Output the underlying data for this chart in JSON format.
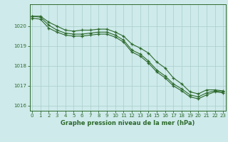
{
  "x": [
    0,
    1,
    2,
    3,
    4,
    5,
    6,
    7,
    8,
    9,
    10,
    11,
    12,
    13,
    14,
    15,
    16,
    17,
    18,
    19,
    20,
    21,
    22,
    23
  ],
  "line1": [
    1020.5,
    1020.5,
    1020.2,
    1020.0,
    1019.8,
    1019.75,
    1019.8,
    1019.8,
    1019.85,
    1019.85,
    1019.7,
    1019.5,
    1019.1,
    1018.9,
    1018.65,
    1018.2,
    1017.9,
    1017.4,
    1017.1,
    1016.7,
    1016.6,
    1016.8,
    1016.8,
    1016.75
  ],
  "line2": [
    1020.4,
    1020.35,
    1019.9,
    1019.7,
    1019.55,
    1019.5,
    1019.5,
    1019.55,
    1019.6,
    1019.6,
    1019.45,
    1019.2,
    1018.7,
    1018.5,
    1018.15,
    1017.7,
    1017.4,
    1017.0,
    1016.75,
    1016.45,
    1016.35,
    1016.55,
    1016.7,
    1016.65
  ],
  "line3": [
    1020.5,
    1020.45,
    1020.05,
    1019.8,
    1019.65,
    1019.6,
    1019.6,
    1019.65,
    1019.7,
    1019.7,
    1019.55,
    1019.3,
    1018.8,
    1018.6,
    1018.25,
    1017.8,
    1017.5,
    1017.1,
    1016.85,
    1016.55,
    1016.45,
    1016.65,
    1016.75,
    1016.7
  ],
  "line_color": "#2d6a2d",
  "bg_color": "#ceeaea",
  "grid_color": "#aacccc",
  "label_color": "#2d6a2d",
  "xlabel": "Graphe pression niveau de la mer (hPa)",
  "ylim": [
    1015.75,
    1021.1
  ],
  "yticks": [
    1016,
    1017,
    1018,
    1019,
    1020
  ],
  "xticks": [
    0,
    1,
    2,
    3,
    4,
    5,
    6,
    7,
    8,
    9,
    10,
    11,
    12,
    13,
    14,
    15,
    16,
    17,
    18,
    19,
    20,
    21,
    22,
    23
  ],
  "tick_fontsize": 5.0,
  "xlabel_fontsize": 6.0
}
